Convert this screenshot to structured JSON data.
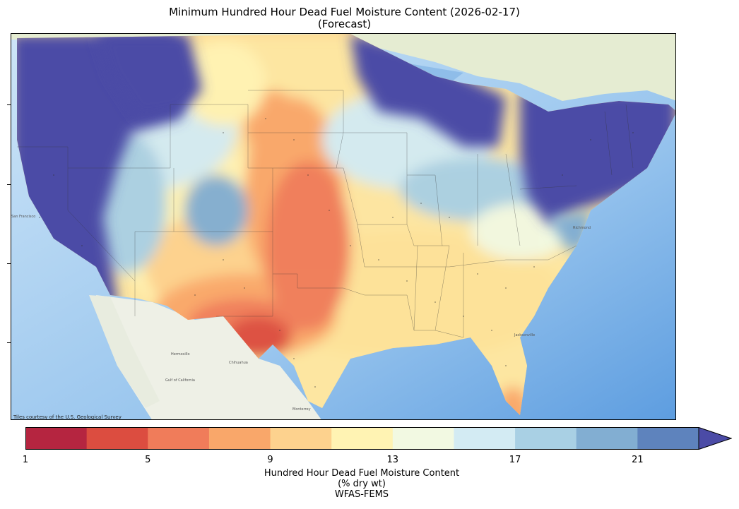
{
  "title": {
    "line1": "Minimum Hundred Hour Dead Fuel Moisture Content (2026-02-17)",
    "line2": "(Forecast)"
  },
  "attribution": "Tiles courtesy of the U.S. Geological Survey",
  "colorbar": {
    "tick_labels": [
      "1",
      "5",
      "9",
      "13",
      "17",
      "21"
    ],
    "label_line1": "Hundred Hour Dead Fuel Moisture Content",
    "label_line2": "(% dry wt)",
    "label_line3": "WFAS-FEMS",
    "colors": [
      "#b52540",
      "#dc4d40",
      "#f07c5a",
      "#f9a76a",
      "#fdd28e",
      "#fff3b3",
      "#f2f9e2",
      "#d3ebf3",
      "#a9d0e4",
      "#82aed2",
      "#5e83bd",
      "#4b4ba6"
    ]
  },
  "map_labels": {
    "gulf_of_california": "Gulf of California",
    "hermosillo": "Hermosillo",
    "chihuahua": "Chihuahua",
    "monterrey": "Monterrey",
    "san_francisco": "San Francisco",
    "richmond": "Richmond",
    "jacksonville": "Jacksonville"
  }
}
